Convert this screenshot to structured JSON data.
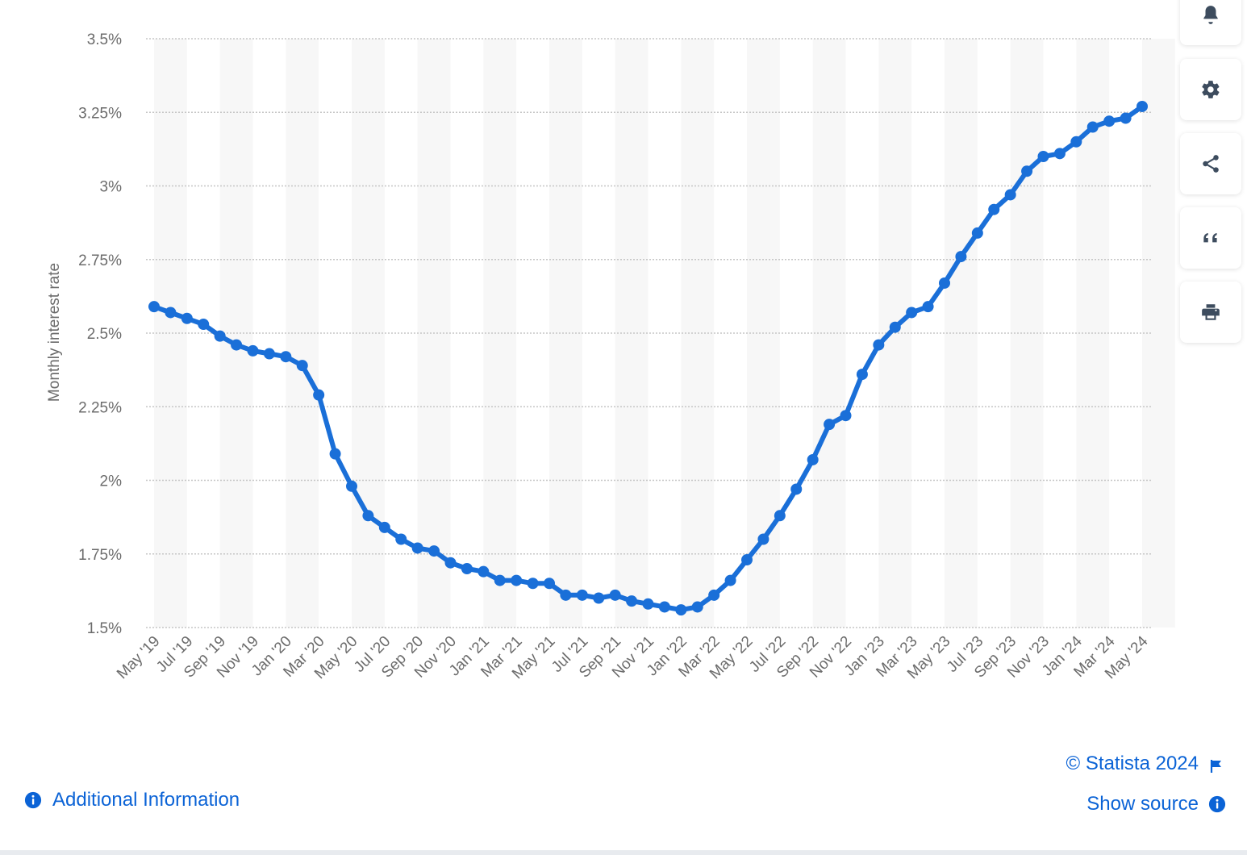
{
  "chart_data": {
    "type": "line",
    "title": "",
    "xlabel": "",
    "ylabel": "Monthly interest rate",
    "ylim": [
      1.5,
      3.5
    ],
    "yticks": [
      {
        "value": 1.5,
        "label": "1.5%"
      },
      {
        "value": 1.75,
        "label": "1.75%"
      },
      {
        "value": 2.0,
        "label": "2%"
      },
      {
        "value": 2.25,
        "label": "2.25%"
      },
      {
        "value": 2.5,
        "label": "2.5%"
      },
      {
        "value": 2.75,
        "label": "2.75%"
      },
      {
        "value": 3.0,
        "label": "3%"
      },
      {
        "value": 3.25,
        "label": "3.25%"
      },
      {
        "value": 3.5,
        "label": "3.5%"
      }
    ],
    "grid": true,
    "legend": "none",
    "categories": [
      "May '19",
      "Jun '19",
      "Jul '19",
      "Aug '19",
      "Sep '19",
      "Oct '19",
      "Nov '19",
      "Dec '19",
      "Jan '20",
      "Feb '20",
      "Mar '20",
      "Apr '20",
      "May '20",
      "Jun '20",
      "Jul '20",
      "Aug '20",
      "Sep '20",
      "Oct '20",
      "Nov '20",
      "Dec '20",
      "Jan '21",
      "Feb '21",
      "Mar '21",
      "Apr '21",
      "May '21",
      "Jun '21",
      "Jul '21",
      "Aug '21",
      "Sep '21",
      "Oct '21",
      "Nov '21",
      "Dec '21",
      "Jan '22",
      "Feb '22",
      "Mar '22",
      "Apr '22",
      "May '22",
      "Jun '22",
      "Jul '22",
      "Aug '22",
      "Sep '22",
      "Oct '22",
      "Nov '22",
      "Dec '22",
      "Jan '23",
      "Feb '23",
      "Mar '23",
      "Apr '23",
      "May '23",
      "Jun '23",
      "Jul '23",
      "Aug '23",
      "Sep '23",
      "Oct '23",
      "Nov '23",
      "Dec '23",
      "Jan '24",
      "Feb '24",
      "Mar '24",
      "Apr '24",
      "May '24"
    ],
    "tick_labels": [
      "May '19",
      "Jul '19",
      "Sep '19",
      "Nov '19",
      "Jan '20",
      "Mar '20",
      "May '20",
      "Jul '20",
      "Sep '20",
      "Nov '20",
      "Jan '21",
      "Mar '21",
      "May '21",
      "Jul '21",
      "Sep '21",
      "Nov '21",
      "Jan '22",
      "Mar '22",
      "May '22",
      "Jul '22",
      "Sep '22",
      "Nov '22",
      "Jan '23",
      "Mar '23",
      "May '23",
      "Jul '23",
      "Sep '23",
      "Nov '23",
      "Jan '24",
      "Mar '24",
      "May '24"
    ],
    "series": [
      {
        "color": "#1a6fd8",
        "values": [
          2.59,
          2.57,
          2.55,
          2.53,
          2.49,
          2.46,
          2.44,
          2.43,
          2.42,
          2.39,
          2.29,
          2.09,
          1.98,
          1.88,
          1.84,
          1.8,
          1.77,
          1.76,
          1.72,
          1.7,
          1.69,
          1.66,
          1.66,
          1.65,
          1.65,
          1.61,
          1.61,
          1.6,
          1.61,
          1.59,
          1.58,
          1.57,
          1.56,
          1.57,
          1.61,
          1.66,
          1.73,
          1.8,
          1.88,
          1.97,
          2.07,
          2.19,
          2.22,
          2.36,
          2.46,
          2.52,
          2.57,
          2.59,
          2.67,
          2.76,
          2.84,
          2.92,
          2.97,
          3.05,
          3.1,
          3.11,
          3.15,
          3.2,
          3.22,
          3.23,
          3.27
        ]
      }
    ]
  },
  "footer": {
    "additional_info_label": "Additional Information",
    "copyright_label": "© Statista 2024",
    "show_source_label": "Show source"
  },
  "toolbar": {
    "icons": [
      "bell-icon",
      "gear-icon",
      "share-icon",
      "quote-icon",
      "print-icon"
    ]
  },
  "colors": {
    "line": "#1a6fd8",
    "link": "#0b63d6",
    "band": "#f7f7f7",
    "grid": "#c6c6c6",
    "axis_text": "#6b6b6b",
    "icon": "#3d4c5e"
  }
}
